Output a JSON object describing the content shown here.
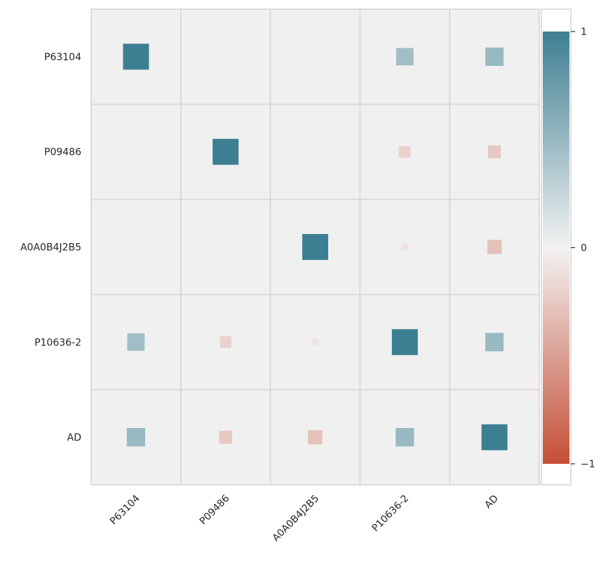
{
  "chart_data": {
    "type": "heatmap",
    "title": "",
    "xlabel": "",
    "ylabel": "",
    "x_categories": [
      "P63104",
      "P09486",
      "A0A0B4J2B5",
      "P10636-2",
      "AD"
    ],
    "y_categories": [
      "P63104",
      "P09486",
      "A0A0B4J2B5",
      "P10636-2",
      "AD"
    ],
    "values": [
      [
        1.0,
        0.0,
        0.02,
        0.45,
        0.5
      ],
      [
        0.0,
        1.0,
        0.02,
        -0.2,
        -0.25
      ],
      [
        0.02,
        0.02,
        1.0,
        -0.08,
        -0.3
      ],
      [
        0.45,
        -0.2,
        -0.08,
        1.0,
        0.5
      ],
      [
        0.5,
        -0.25,
        -0.3,
        0.5,
        1.0
      ]
    ],
    "marker": "square-size-proportional-to-abs-value",
    "colorbar": {
      "range": [
        -1,
        1
      ],
      "ticks": [
        1,
        0,
        -1
      ],
      "tick_labels": [
        "1",
        "0",
        "−1"
      ],
      "colors": {
        "negative": "#C44E34",
        "neutral": "#F2F2F2",
        "positive": "#3D7F92"
      }
    },
    "grid": true,
    "plot_background": "#F0F0F0",
    "grid_color": "#D3D3D3"
  }
}
